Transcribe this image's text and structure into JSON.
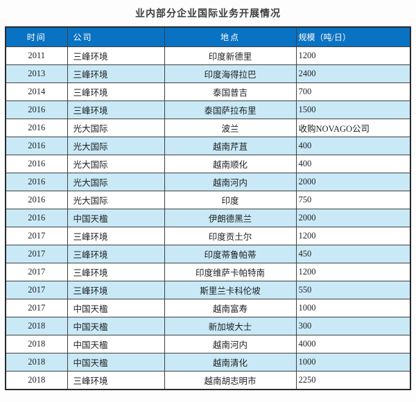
{
  "title": "业内部分企业国际业务开展情况",
  "colors": {
    "header_bg": "#0a72c2",
    "header_text": "#ffffff",
    "row_bg": "#ffffff",
    "row_alt_bg": "#c9e9f7",
    "border": "#3f3f3f",
    "title_text": "#3d3d3d"
  },
  "table": {
    "column_keys": [
      "time",
      "company",
      "location",
      "scale"
    ],
    "headers": [
      "时间",
      "公司",
      "地点",
      "规模（吨/日）"
    ],
    "rows": [
      [
        "2011",
        "三峰环境",
        "印度新德里",
        "1200"
      ],
      [
        "2013",
        "三峰环境",
        "印度海得拉巴",
        "2400"
      ],
      [
        "2014",
        "三峰环境",
        "泰国普吉",
        "700"
      ],
      [
        "2016",
        "三峰环境",
        "泰国萨拉布里",
        "1500"
      ],
      [
        "2016",
        "光大国际",
        "波兰",
        "收购NOVAGO公司"
      ],
      [
        "2016",
        "光大国际",
        "越南芹苴",
        "400"
      ],
      [
        "2016",
        "光大国际",
        "越南顺化",
        "400"
      ],
      [
        "2016",
        "光大国际",
        "越南河内",
        "2000"
      ],
      [
        "2016",
        "光大国际",
        "印度",
        "750"
      ],
      [
        "2016",
        "中国天楹",
        "伊朗德黑兰",
        "2000"
      ],
      [
        "2017",
        "三峰环境",
        "印度贡土尔",
        "1200"
      ],
      [
        "2017",
        "三峰环境",
        "印度蒂鲁帕蒂",
        "450"
      ],
      [
        "2017",
        "三峰环境",
        "印度维萨卡帕特南",
        "1200"
      ],
      [
        "2017",
        "三峰环境",
        "斯里兰卡科伦坡",
        "550"
      ],
      [
        "2017",
        "中国天楹",
        "越南富寿",
        "1000"
      ],
      [
        "2018",
        "中国天楹",
        "新加坡大士",
        "300"
      ],
      [
        "2018",
        "中国天楹",
        "越南河内",
        "4000"
      ],
      [
        "2018",
        "中国天楹",
        "越南清化",
        "1000"
      ],
      [
        "2018",
        "三峰环境",
        "越南胡志明市",
        "2250"
      ]
    ]
  }
}
